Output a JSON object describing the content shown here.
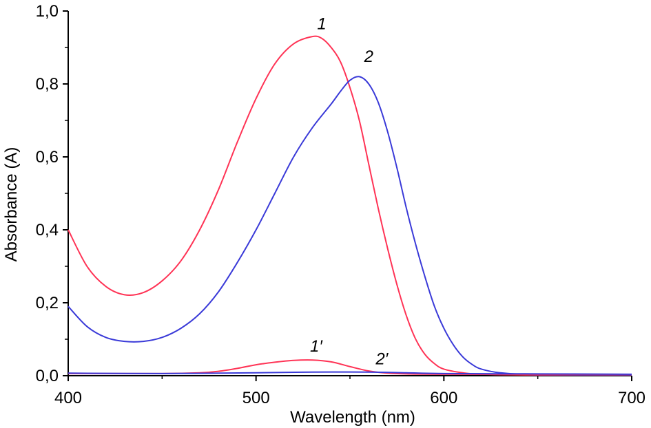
{
  "chart_data": {
    "type": "line",
    "xlabel": "Wavelength (nm)",
    "ylabel": "Absorbance (A)",
    "xlim": [
      400,
      700
    ],
    "ylim": [
      0,
      1.0
    ],
    "x_ticks": [
      "400",
      "500",
      "600",
      "700"
    ],
    "y_ticks": [
      "0,0",
      "0,2",
      "0,4",
      "0,6",
      "0,8",
      "1,0"
    ],
    "grid": false,
    "legend": "none",
    "series": [
      {
        "name": "1",
        "color": "#ff3355",
        "points": [
          [
            400,
            0.4
          ],
          [
            410,
            0.3
          ],
          [
            420,
            0.245
          ],
          [
            430,
            0.222
          ],
          [
            440,
            0.228
          ],
          [
            450,
            0.26
          ],
          [
            460,
            0.315
          ],
          [
            470,
            0.4
          ],
          [
            480,
            0.51
          ],
          [
            490,
            0.64
          ],
          [
            500,
            0.76
          ],
          [
            510,
            0.855
          ],
          [
            520,
            0.91
          ],
          [
            530,
            0.93
          ],
          [
            535,
            0.925
          ],
          [
            540,
            0.9
          ],
          [
            545,
            0.86
          ],
          [
            550,
            0.79
          ],
          [
            555,
            0.7
          ],
          [
            560,
            0.58
          ],
          [
            565,
            0.46
          ],
          [
            570,
            0.35
          ],
          [
            575,
            0.25
          ],
          [
            580,
            0.165
          ],
          [
            585,
            0.1
          ],
          [
            590,
            0.058
          ],
          [
            595,
            0.033
          ],
          [
            600,
            0.018
          ],
          [
            610,
            0.008
          ],
          [
            620,
            0.004
          ],
          [
            650,
            0.002
          ],
          [
            700,
            0.002
          ]
        ]
      },
      {
        "name": "2",
        "color": "#3a3ad8",
        "points": [
          [
            400,
            0.19
          ],
          [
            410,
            0.135
          ],
          [
            420,
            0.105
          ],
          [
            430,
            0.094
          ],
          [
            440,
            0.094
          ],
          [
            450,
            0.105
          ],
          [
            460,
            0.13
          ],
          [
            470,
            0.17
          ],
          [
            480,
            0.23
          ],
          [
            490,
            0.31
          ],
          [
            500,
            0.4
          ],
          [
            510,
            0.5
          ],
          [
            520,
            0.6
          ],
          [
            530,
            0.68
          ],
          [
            540,
            0.745
          ],
          [
            545,
            0.78
          ],
          [
            550,
            0.81
          ],
          [
            555,
            0.82
          ],
          [
            560,
            0.8
          ],
          [
            565,
            0.75
          ],
          [
            570,
            0.67
          ],
          [
            575,
            0.57
          ],
          [
            580,
            0.46
          ],
          [
            585,
            0.36
          ],
          [
            590,
            0.27
          ],
          [
            595,
            0.19
          ],
          [
            600,
            0.13
          ],
          [
            605,
            0.085
          ],
          [
            610,
            0.052
          ],
          [
            615,
            0.031
          ],
          [
            620,
            0.018
          ],
          [
            630,
            0.008
          ],
          [
            650,
            0.003
          ],
          [
            700,
            0.002
          ]
        ]
      },
      {
        "name": "1′",
        "color": "#ff3355",
        "points": [
          [
            400,
            0.006
          ],
          [
            450,
            0.006
          ],
          [
            470,
            0.008
          ],
          [
            480,
            0.012
          ],
          [
            490,
            0.02
          ],
          [
            500,
            0.03
          ],
          [
            510,
            0.037
          ],
          [
            520,
            0.042
          ],
          [
            530,
            0.043
          ],
          [
            540,
            0.038
          ],
          [
            550,
            0.025
          ],
          [
            560,
            0.013
          ],
          [
            570,
            0.007
          ],
          [
            580,
            0.005
          ],
          [
            600,
            0.004
          ],
          [
            700,
            0.003
          ]
        ]
      },
      {
        "name": "2′",
        "color": "#3a3ad8",
        "points": [
          [
            400,
            0.007
          ],
          [
            450,
            0.006
          ],
          [
            500,
            0.008
          ],
          [
            530,
            0.01
          ],
          [
            560,
            0.01
          ],
          [
            580,
            0.008
          ],
          [
            600,
            0.006
          ],
          [
            650,
            0.005
          ],
          [
            700,
            0.004
          ]
        ]
      }
    ],
    "annotations": [
      {
        "text": "1",
        "x": 535,
        "y": 0.95
      },
      {
        "text": "2",
        "x": 560,
        "y": 0.86
      },
      {
        "text": "1′",
        "x": 532,
        "y": 0.066
      },
      {
        "text": "2′",
        "x": 567,
        "y": 0.031
      }
    ]
  }
}
